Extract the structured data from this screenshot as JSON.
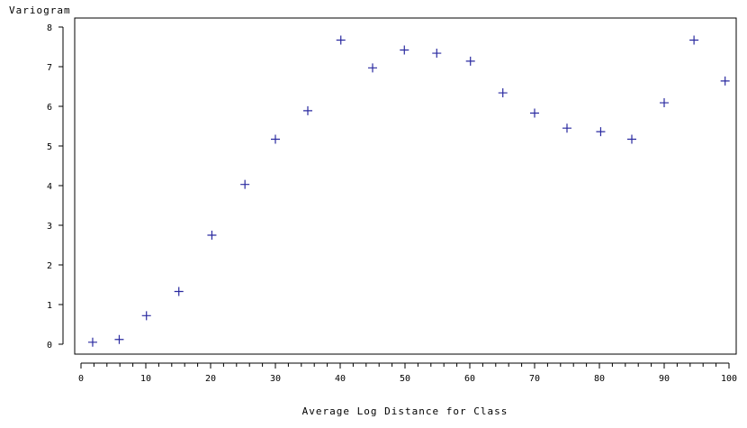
{
  "chart_data": {
    "type": "scatter",
    "title": "",
    "xlabel": "Average Log Distance for Class",
    "ylabel": "Variogram",
    "xlim": [
      0,
      100
    ],
    "ylim": [
      0,
      8
    ],
    "xticks": [
      0,
      10,
      20,
      30,
      40,
      50,
      60,
      70,
      80,
      90,
      100
    ],
    "yticks": [
      0,
      1,
      2,
      3,
      4,
      5,
      6,
      7,
      8
    ],
    "grid": false,
    "marker": "plus",
    "series": [
      {
        "color": "#2a2aa0",
        "x": [
          1.8,
          5.9,
          10.1,
          15.1,
          20.2,
          25.3,
          30.0,
          35.0,
          40.1,
          45.0,
          49.9,
          54.9,
          60.1,
          65.1,
          70.0,
          75.0,
          80.2,
          85.0,
          90.0,
          94.6,
          99.4
        ],
        "y": [
          0.05,
          0.12,
          0.72,
          1.33,
          2.75,
          4.03,
          5.17,
          5.89,
          7.67,
          6.97,
          7.42,
          7.34,
          7.14,
          6.34,
          5.83,
          5.45,
          5.36,
          5.17,
          6.09,
          7.67,
          6.64
        ]
      }
    ]
  }
}
